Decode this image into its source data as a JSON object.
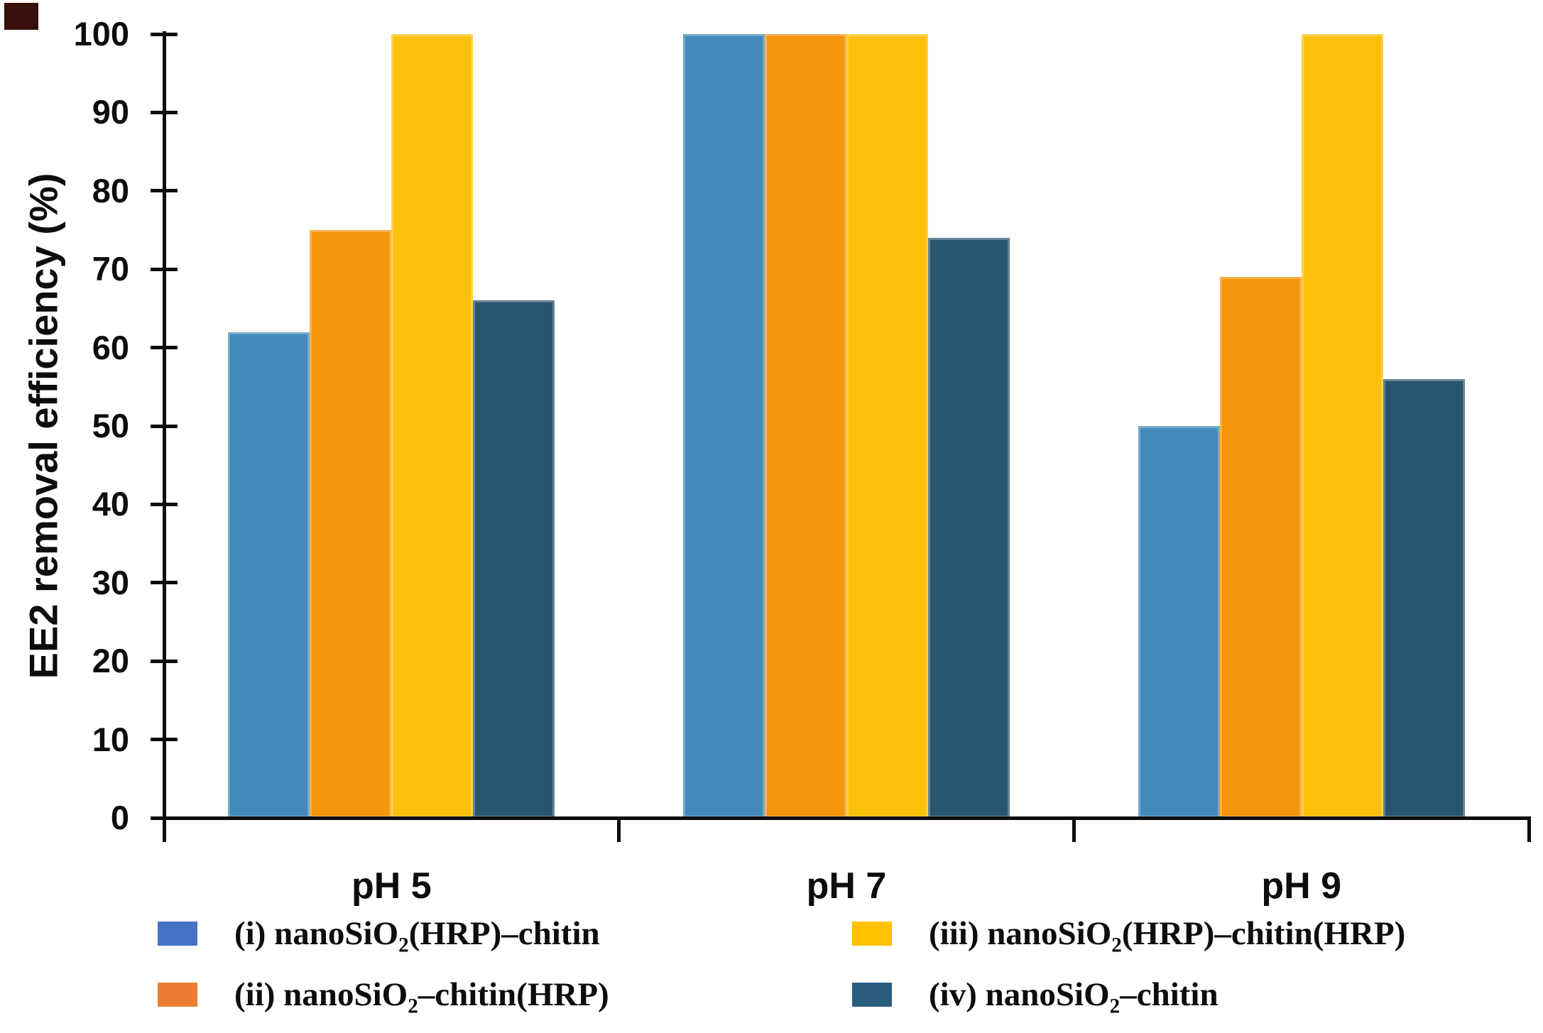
{
  "chart_data": {
    "type": "bar",
    "title": "",
    "xlabel": "",
    "ylabel": "EE2 removal efficiency (%)",
    "categories": [
      "pH 5",
      "pH 7",
      "pH 9"
    ],
    "series": [
      {
        "name": "(i) nanoSiO2(HRP)–chitin",
        "color": "#428ABB",
        "values": [
          62,
          100,
          50
        ]
      },
      {
        "name": "(ii) nanoSiO2–chitin(HRP)",
        "color": "#F4950A",
        "values": [
          75,
          100,
          69
        ]
      },
      {
        "name": "(iii) nanoSiO2(HRP)–chitin(HRP)",
        "color": "#FEC10A",
        "values": [
          100,
          100,
          100
        ]
      },
      {
        "name": "(iv) nanoSiO2–chitin",
        "color": "#29546E",
        "values": [
          66,
          74,
          56
        ]
      }
    ],
    "ylim": [
      0,
      100
    ],
    "ytick_step": 10,
    "grid": false,
    "legend_position": "bottom",
    "legend": [
      {
        "prefix": "(i) nanoSiO",
        "sub": "2",
        "suffix": "(HRP)–chitin",
        "swatch": "#4472C4",
        "col": 0,
        "row": 0
      },
      {
        "prefix": "(ii) nanoSiO",
        "sub": "2",
        "suffix": "–chitin(HRP)",
        "swatch": "#ED7D31",
        "col": 0,
        "row": 1
      },
      {
        "prefix": "(iii) nanoSiO",
        "sub": "2",
        "suffix": "(HRP)–chitin(HRP)",
        "swatch": "#FFC000",
        "col": 1,
        "row": 0
      },
      {
        "prefix": "(iv) nanoSiO",
        "sub": "2",
        "suffix": "–chitin",
        "swatch": "#2B5D7E",
        "col": 1,
        "row": 1
      }
    ]
  }
}
